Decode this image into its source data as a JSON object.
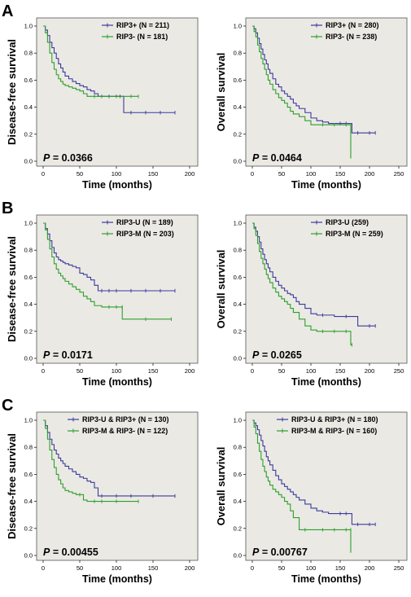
{
  "colors": {
    "series1": "#3b3b9b",
    "series2": "#2ca02c",
    "plot_bg": "#ebe9e4",
    "frame": "#555555"
  },
  "panels": [
    {
      "label": "A"
    },
    {
      "label": "B"
    },
    {
      "label": "C"
    }
  ],
  "chart_data": [
    {
      "type": "line",
      "panel": "A",
      "ylabel": "Disease-free survival",
      "xlabel": "Time (months)",
      "xlim": [
        0,
        200
      ],
      "ylim": [
        0,
        1.0
      ],
      "xticks": [
        "0",
        "50",
        "100",
        "150",
        "200"
      ],
      "yticks": [
        "0.0",
        "0.2",
        "0.4",
        "0.6",
        "0.8",
        "1.0"
      ],
      "p_label": "P",
      "p_value": " = 0.0366",
      "series": [
        {
          "name": "RIP3+ (N = 211)",
          "x": [
            0,
            3,
            6,
            9,
            12,
            15,
            18,
            21,
            24,
            27,
            30,
            35,
            40,
            45,
            50,
            55,
            60,
            65,
            70,
            75,
            80,
            90,
            100,
            105,
            110,
            120,
            140,
            160,
            180
          ],
          "y": [
            1.0,
            0.97,
            0.93,
            0.88,
            0.84,
            0.8,
            0.76,
            0.72,
            0.69,
            0.66,
            0.63,
            0.61,
            0.59,
            0.575,
            0.56,
            0.55,
            0.53,
            0.52,
            0.5,
            0.48,
            0.48,
            0.48,
            0.48,
            0.48,
            0.36,
            0.36,
            0.36,
            0.36,
            0.36
          ]
        },
        {
          "name": "RIP3- (N = 181)",
          "x": [
            0,
            3,
            6,
            9,
            12,
            15,
            18,
            21,
            24,
            27,
            30,
            35,
            40,
            45,
            50,
            55,
            60,
            70,
            80,
            100,
            120,
            130
          ],
          "y": [
            1.0,
            0.95,
            0.88,
            0.8,
            0.73,
            0.68,
            0.64,
            0.61,
            0.59,
            0.57,
            0.56,
            0.55,
            0.54,
            0.53,
            0.52,
            0.5,
            0.48,
            0.48,
            0.48,
            0.48,
            0.48,
            0.48
          ]
        }
      ]
    },
    {
      "type": "line",
      "panel": "A",
      "ylabel": "Overall survival",
      "xlabel": "Time (months)",
      "xlim": [
        0,
        250
      ],
      "ylim": [
        0,
        1.0
      ],
      "xticks": [
        "0",
        "50",
        "100",
        "150",
        "200",
        "250"
      ],
      "yticks": [
        "0.0",
        "0.2",
        "0.4",
        "0.6",
        "0.8",
        "1.0"
      ],
      "p_label": "P",
      "p_value": " = 0.0464",
      "series": [
        {
          "name": "RIP3+ (N = 280)",
          "x": [
            0,
            3,
            6,
            9,
            12,
            15,
            18,
            21,
            24,
            27,
            30,
            35,
            40,
            45,
            50,
            55,
            60,
            65,
            70,
            75,
            80,
            90,
            100,
            110,
            120,
            130,
            150,
            160,
            170,
            180,
            200,
            210
          ],
          "y": [
            1.0,
            0.98,
            0.95,
            0.91,
            0.87,
            0.83,
            0.79,
            0.75,
            0.72,
            0.68,
            0.65,
            0.61,
            0.57,
            0.55,
            0.52,
            0.5,
            0.48,
            0.46,
            0.43,
            0.41,
            0.39,
            0.36,
            0.32,
            0.3,
            0.29,
            0.28,
            0.28,
            0.28,
            0.21,
            0.21,
            0.21,
            0.21
          ]
        },
        {
          "name": "RIP3- (N = 238)",
          "x": [
            0,
            3,
            6,
            9,
            12,
            15,
            18,
            21,
            24,
            27,
            30,
            35,
            40,
            45,
            50,
            55,
            60,
            65,
            70,
            80,
            90,
            100,
            120,
            140,
            160,
            168,
            168
          ],
          "y": [
            1.0,
            0.96,
            0.92,
            0.86,
            0.81,
            0.76,
            0.72,
            0.68,
            0.64,
            0.6,
            0.57,
            0.53,
            0.5,
            0.47,
            0.45,
            0.43,
            0.4,
            0.37,
            0.35,
            0.33,
            0.3,
            0.27,
            0.27,
            0.27,
            0.27,
            0.27,
            0.02
          ]
        }
      ]
    },
    {
      "type": "line",
      "panel": "B",
      "ylabel": "Disease-free survival",
      "xlabel": "Time (months)",
      "xlim": [
        0,
        200
      ],
      "ylim": [
        0,
        1.0
      ],
      "xticks": [
        "0",
        "50",
        "100",
        "150",
        "200"
      ],
      "yticks": [
        "0.0",
        "0.2",
        "0.4",
        "0.6",
        "0.8",
        "1.0"
      ],
      "p_label": "P",
      "p_value": " = 0.0171",
      "series": [
        {
          "name": "RIP3-U (N = 189)",
          "x": [
            0,
            3,
            6,
            9,
            12,
            15,
            18,
            21,
            24,
            27,
            30,
            35,
            40,
            45,
            50,
            55,
            60,
            65,
            70,
            75,
            80,
            90,
            100,
            120,
            140,
            160,
            180
          ],
          "y": [
            1.0,
            0.96,
            0.92,
            0.87,
            0.82,
            0.78,
            0.75,
            0.73,
            0.72,
            0.71,
            0.7,
            0.69,
            0.68,
            0.67,
            0.63,
            0.62,
            0.6,
            0.58,
            0.54,
            0.5,
            0.5,
            0.5,
            0.5,
            0.5,
            0.5,
            0.5,
            0.5
          ]
        },
        {
          "name": "RIP3-M (N = 203)",
          "x": [
            0,
            3,
            6,
            9,
            12,
            15,
            18,
            21,
            24,
            27,
            30,
            35,
            40,
            45,
            50,
            55,
            60,
            65,
            70,
            80,
            90,
            100,
            108,
            108,
            140,
            175
          ],
          "y": [
            1.0,
            0.95,
            0.88,
            0.81,
            0.75,
            0.7,
            0.66,
            0.63,
            0.61,
            0.59,
            0.57,
            0.55,
            0.53,
            0.51,
            0.49,
            0.46,
            0.44,
            0.42,
            0.39,
            0.38,
            0.38,
            0.38,
            0.38,
            0.29,
            0.29,
            0.29
          ]
        }
      ]
    },
    {
      "type": "line",
      "panel": "B",
      "ylabel": "Overall survival",
      "xlabel": "Time (months)",
      "xlim": [
        0,
        250
      ],
      "ylim": [
        0,
        1.0
      ],
      "xticks": [
        "0",
        "50",
        "100",
        "150",
        "200",
        "250"
      ],
      "yticks": [
        "0.0",
        "0.2",
        "0.4",
        "0.6",
        "0.8",
        "1.0"
      ],
      "p_label": "P",
      "p_value": " = 0.0265",
      "series": [
        {
          "name": "RIP3-U (259)",
          "x": [
            0,
            3,
            6,
            9,
            12,
            15,
            18,
            21,
            24,
            27,
            30,
            35,
            40,
            45,
            50,
            55,
            60,
            65,
            70,
            75,
            80,
            90,
            100,
            110,
            120,
            140,
            160,
            180,
            200,
            210
          ],
          "y": [
            1.0,
            0.97,
            0.94,
            0.9,
            0.86,
            0.81,
            0.77,
            0.73,
            0.7,
            0.67,
            0.64,
            0.6,
            0.57,
            0.54,
            0.52,
            0.5,
            0.48,
            0.47,
            0.45,
            0.42,
            0.4,
            0.37,
            0.33,
            0.32,
            0.32,
            0.31,
            0.31,
            0.24,
            0.24,
            0.24
          ]
        },
        {
          "name": "RIP3-M (N = 259)",
          "x": [
            0,
            3,
            6,
            9,
            12,
            15,
            18,
            21,
            24,
            27,
            30,
            35,
            40,
            45,
            50,
            55,
            60,
            65,
            70,
            80,
            90,
            100,
            110,
            120,
            140,
            160,
            168,
            170
          ],
          "y": [
            1.0,
            0.96,
            0.91,
            0.85,
            0.79,
            0.74,
            0.7,
            0.66,
            0.62,
            0.59,
            0.56,
            0.52,
            0.49,
            0.46,
            0.44,
            0.42,
            0.4,
            0.37,
            0.34,
            0.29,
            0.24,
            0.21,
            0.2,
            0.2,
            0.2,
            0.2,
            0.1,
            0.1
          ]
        }
      ]
    },
    {
      "type": "line",
      "panel": "C",
      "ylabel": "Disease-free survival",
      "xlabel": "Time (months)",
      "xlim": [
        0,
        200
      ],
      "ylim": [
        0,
        1.0
      ],
      "xticks": [
        "0",
        "50",
        "100",
        "150",
        "200"
      ],
      "yticks": [
        "0.0",
        "0.2",
        "0.4",
        "0.6",
        "0.8",
        "1.0"
      ],
      "p_label": "P",
      "p_value": " = 0.00455",
      "series": [
        {
          "name": "RIP3-U & RIP3+ (N = 130)",
          "x": [
            0,
            3,
            6,
            9,
            12,
            15,
            18,
            21,
            24,
            27,
            30,
            35,
            40,
            45,
            50,
            55,
            60,
            65,
            70,
            75,
            80,
            100,
            120,
            150,
            180
          ],
          "y": [
            1.0,
            0.96,
            0.91,
            0.86,
            0.82,
            0.78,
            0.75,
            0.72,
            0.7,
            0.68,
            0.66,
            0.64,
            0.62,
            0.6,
            0.58,
            0.57,
            0.55,
            0.54,
            0.5,
            0.44,
            0.44,
            0.44,
            0.44,
            0.44,
            0.44
          ]
        },
        {
          "name": "RIP3-M & RIP3- (N = 122)",
          "x": [
            0,
            3,
            6,
            9,
            12,
            15,
            18,
            21,
            24,
            27,
            30,
            35,
            40,
            45,
            50,
            55,
            60,
            70,
            80,
            100,
            130
          ],
          "y": [
            1.0,
            0.94,
            0.86,
            0.78,
            0.71,
            0.65,
            0.6,
            0.56,
            0.53,
            0.5,
            0.48,
            0.47,
            0.46,
            0.45,
            0.45,
            0.41,
            0.4,
            0.4,
            0.4,
            0.4,
            0.4
          ]
        }
      ]
    },
    {
      "type": "line",
      "panel": "C",
      "ylabel": "Overall survival",
      "xlabel": "Time (months)",
      "xlim": [
        0,
        250
      ],
      "ylim": [
        0,
        1.0
      ],
      "xticks": [
        "0",
        "50",
        "100",
        "150",
        "200",
        "250"
      ],
      "yticks": [
        "0.0",
        "0.2",
        "0.4",
        "0.6",
        "0.8",
        "1.0"
      ],
      "p_label": "P",
      "p_value": " = 0.00767",
      "series": [
        {
          "name": "RIP3-U & RIP3+ (N = 180)",
          "x": [
            0,
            3,
            6,
            9,
            12,
            15,
            18,
            21,
            24,
            27,
            30,
            35,
            40,
            45,
            50,
            55,
            60,
            65,
            70,
            75,
            80,
            90,
            100,
            110,
            120,
            130,
            150,
            160,
            170,
            180,
            200,
            210
          ],
          "y": [
            1.0,
            0.98,
            0.96,
            0.93,
            0.89,
            0.85,
            0.81,
            0.77,
            0.73,
            0.7,
            0.67,
            0.63,
            0.59,
            0.56,
            0.53,
            0.51,
            0.49,
            0.47,
            0.45,
            0.43,
            0.41,
            0.38,
            0.35,
            0.33,
            0.32,
            0.31,
            0.31,
            0.31,
            0.23,
            0.23,
            0.23,
            0.23
          ]
        },
        {
          "name": "RIP3-M & RIP3- (N = 160)",
          "x": [
            0,
            3,
            6,
            9,
            12,
            15,
            18,
            21,
            24,
            27,
            30,
            35,
            40,
            45,
            50,
            55,
            60,
            65,
            70,
            80,
            90,
            120,
            140,
            160,
            168,
            168
          ],
          "y": [
            1.0,
            0.95,
            0.9,
            0.83,
            0.77,
            0.71,
            0.66,
            0.62,
            0.58,
            0.55,
            0.52,
            0.49,
            0.47,
            0.45,
            0.43,
            0.4,
            0.38,
            0.33,
            0.28,
            0.19,
            0.19,
            0.19,
            0.19,
            0.19,
            0.19,
            0.02
          ]
        }
      ]
    }
  ]
}
